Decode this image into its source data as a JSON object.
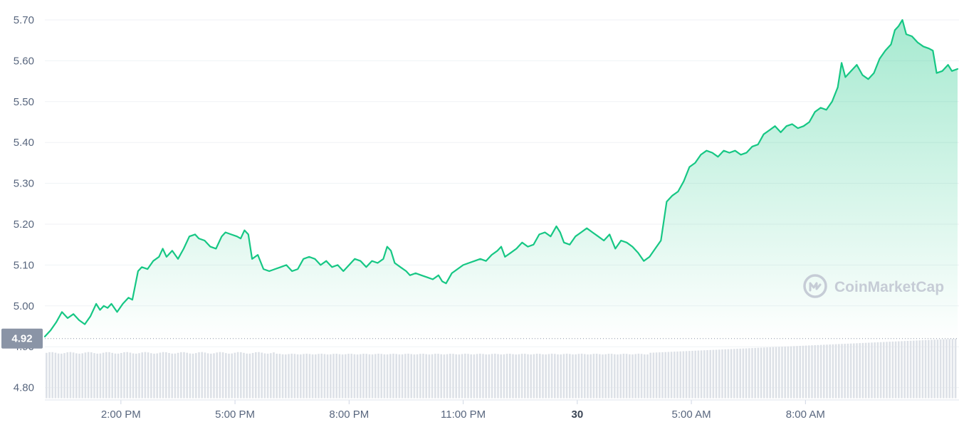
{
  "chart_data": {
    "type": "area",
    "y_ticks": [
      "5.70",
      "5.60",
      "5.50",
      "5.40",
      "5.30",
      "5.20",
      "5.10",
      "5.00",
      "4.90",
      "4.80"
    ],
    "ylim": [
      4.775,
      5.73
    ],
    "x_ticks": [
      {
        "label": "2:00 PM",
        "x": 2.0,
        "bold": false
      },
      {
        "label": "5:00 PM",
        "x": 5.0,
        "bold": false
      },
      {
        "label": "8:00 PM",
        "x": 8.0,
        "bold": false
      },
      {
        "label": "11:00 PM",
        "x": 11.0,
        "bold": false
      },
      {
        "label": "30",
        "x": 14.0,
        "bold": true
      },
      {
        "label": "5:00 AM",
        "x": 17.0,
        "bold": false
      },
      {
        "label": "8:00 AM",
        "x": 20.0,
        "bold": false
      }
    ],
    "xlim": [
      0.0,
      24.0
    ],
    "open_price": 4.92,
    "open_price_label": "4.92",
    "line_color": "#16c784",
    "series": [
      {
        "points": [
          [
            0.0,
            4.925
          ],
          [
            0.15,
            4.94
          ],
          [
            0.3,
            4.96
          ],
          [
            0.45,
            4.985
          ],
          [
            0.6,
            4.97
          ],
          [
            0.75,
            4.98
          ],
          [
            0.9,
            4.965
          ],
          [
            1.05,
            4.955
          ],
          [
            1.2,
            4.975
          ],
          [
            1.35,
            5.005
          ],
          [
            1.45,
            4.99
          ],
          [
            1.55,
            5.0
          ],
          [
            1.65,
            4.995
          ],
          [
            1.75,
            5.005
          ],
          [
            1.9,
            4.985
          ],
          [
            2.05,
            5.005
          ],
          [
            2.2,
            5.02
          ],
          [
            2.3,
            5.015
          ],
          [
            2.45,
            5.085
          ],
          [
            2.55,
            5.095
          ],
          [
            2.7,
            5.09
          ],
          [
            2.85,
            5.11
          ],
          [
            3.0,
            5.12
          ],
          [
            3.1,
            5.14
          ],
          [
            3.2,
            5.12
          ],
          [
            3.35,
            5.135
          ],
          [
            3.5,
            5.115
          ],
          [
            3.65,
            5.14
          ],
          [
            3.8,
            5.17
          ],
          [
            3.95,
            5.175
          ],
          [
            4.05,
            5.165
          ],
          [
            4.2,
            5.16
          ],
          [
            4.35,
            5.145
          ],
          [
            4.5,
            5.14
          ],
          [
            4.65,
            5.17
          ],
          [
            4.75,
            5.18
          ],
          [
            4.9,
            5.175
          ],
          [
            5.05,
            5.17
          ],
          [
            5.15,
            5.165
          ],
          [
            5.25,
            5.185
          ],
          [
            5.35,
            5.175
          ],
          [
            5.45,
            5.115
          ],
          [
            5.6,
            5.125
          ],
          [
            5.75,
            5.09
          ],
          [
            5.9,
            5.085
          ],
          [
            6.05,
            5.09
          ],
          [
            6.2,
            5.095
          ],
          [
            6.35,
            5.1
          ],
          [
            6.5,
            5.085
          ],
          [
            6.65,
            5.09
          ],
          [
            6.8,
            5.115
          ],
          [
            6.95,
            5.12
          ],
          [
            7.1,
            5.115
          ],
          [
            7.25,
            5.1
          ],
          [
            7.4,
            5.11
          ],
          [
            7.55,
            5.095
          ],
          [
            7.7,
            5.1
          ],
          [
            7.85,
            5.085
          ],
          [
            8.0,
            5.1
          ],
          [
            8.15,
            5.115
          ],
          [
            8.3,
            5.11
          ],
          [
            8.45,
            5.095
          ],
          [
            8.6,
            5.11
          ],
          [
            8.75,
            5.105
          ],
          [
            8.9,
            5.115
          ],
          [
            9.0,
            5.145
          ],
          [
            9.1,
            5.135
          ],
          [
            9.2,
            5.105
          ],
          [
            9.35,
            5.095
          ],
          [
            9.5,
            5.085
          ],
          [
            9.6,
            5.075
          ],
          [
            9.75,
            5.08
          ],
          [
            9.9,
            5.075
          ],
          [
            10.05,
            5.07
          ],
          [
            10.2,
            5.065
          ],
          [
            10.35,
            5.075
          ],
          [
            10.45,
            5.06
          ],
          [
            10.55,
            5.055
          ],
          [
            10.7,
            5.08
          ],
          [
            10.85,
            5.09
          ],
          [
            11.0,
            5.1
          ],
          [
            11.15,
            5.105
          ],
          [
            11.3,
            5.11
          ],
          [
            11.45,
            5.115
          ],
          [
            11.6,
            5.11
          ],
          [
            11.75,
            5.125
          ],
          [
            11.9,
            5.135
          ],
          [
            12.0,
            5.145
          ],
          [
            12.1,
            5.12
          ],
          [
            12.25,
            5.13
          ],
          [
            12.4,
            5.14
          ],
          [
            12.55,
            5.155
          ],
          [
            12.7,
            5.145
          ],
          [
            12.85,
            5.15
          ],
          [
            13.0,
            5.175
          ],
          [
            13.15,
            5.18
          ],
          [
            13.3,
            5.17
          ],
          [
            13.45,
            5.195
          ],
          [
            13.55,
            5.18
          ],
          [
            13.65,
            5.155
          ],
          [
            13.8,
            5.15
          ],
          [
            13.95,
            5.17
          ],
          [
            14.1,
            5.18
          ],
          [
            14.25,
            5.19
          ],
          [
            14.4,
            5.18
          ],
          [
            14.55,
            5.17
          ],
          [
            14.7,
            5.16
          ],
          [
            14.85,
            5.175
          ],
          [
            15.0,
            5.14
          ],
          [
            15.15,
            5.16
          ],
          [
            15.3,
            5.155
          ],
          [
            15.45,
            5.145
          ],
          [
            15.6,
            5.13
          ],
          [
            15.75,
            5.11
          ],
          [
            15.9,
            5.12
          ],
          [
            16.05,
            5.14
          ],
          [
            16.2,
            5.16
          ],
          [
            16.35,
            5.255
          ],
          [
            16.5,
            5.27
          ],
          [
            16.65,
            5.28
          ],
          [
            16.8,
            5.305
          ],
          [
            16.95,
            5.34
          ],
          [
            17.1,
            5.35
          ],
          [
            17.25,
            5.37
          ],
          [
            17.4,
            5.38
          ],
          [
            17.55,
            5.375
          ],
          [
            17.7,
            5.365
          ],
          [
            17.85,
            5.38
          ],
          [
            18.0,
            5.375
          ],
          [
            18.15,
            5.38
          ],
          [
            18.3,
            5.37
          ],
          [
            18.45,
            5.375
          ],
          [
            18.6,
            5.39
          ],
          [
            18.75,
            5.395
          ],
          [
            18.9,
            5.42
          ],
          [
            19.05,
            5.43
          ],
          [
            19.2,
            5.44
          ],
          [
            19.35,
            5.425
          ],
          [
            19.5,
            5.44
          ],
          [
            19.65,
            5.445
          ],
          [
            19.8,
            5.435
          ],
          [
            19.95,
            5.44
          ],
          [
            20.1,
            5.45
          ],
          [
            20.25,
            5.475
          ],
          [
            20.4,
            5.485
          ],
          [
            20.55,
            5.48
          ],
          [
            20.7,
            5.5
          ],
          [
            20.85,
            5.535
          ],
          [
            20.95,
            5.595
          ],
          [
            21.05,
            5.56
          ],
          [
            21.2,
            5.575
          ],
          [
            21.35,
            5.59
          ],
          [
            21.5,
            5.565
          ],
          [
            21.65,
            5.555
          ],
          [
            21.8,
            5.57
          ],
          [
            21.95,
            5.605
          ],
          [
            22.1,
            5.625
          ],
          [
            22.25,
            5.64
          ],
          [
            22.35,
            5.675
          ],
          [
            22.45,
            5.685
          ],
          [
            22.55,
            5.7
          ],
          [
            22.65,
            5.665
          ],
          [
            22.8,
            5.66
          ],
          [
            22.95,
            5.645
          ],
          [
            23.1,
            5.635
          ],
          [
            23.25,
            5.63
          ],
          [
            23.35,
            5.625
          ],
          [
            23.45,
            5.57
          ],
          [
            23.6,
            5.575
          ],
          [
            23.75,
            5.59
          ],
          [
            23.85,
            5.575
          ],
          [
            24.0,
            5.58
          ]
        ]
      }
    ],
    "volume": {
      "baseline": 4.774,
      "start_top": 4.885,
      "end_top": 4.92
    },
    "grid": true,
    "title": "",
    "xlabel": "",
    "ylabel": ""
  },
  "watermark": {
    "text": "CoinMarketCap",
    "icon": "coinmarketcap-logo-icon",
    "color": "#c6ccd6"
  }
}
